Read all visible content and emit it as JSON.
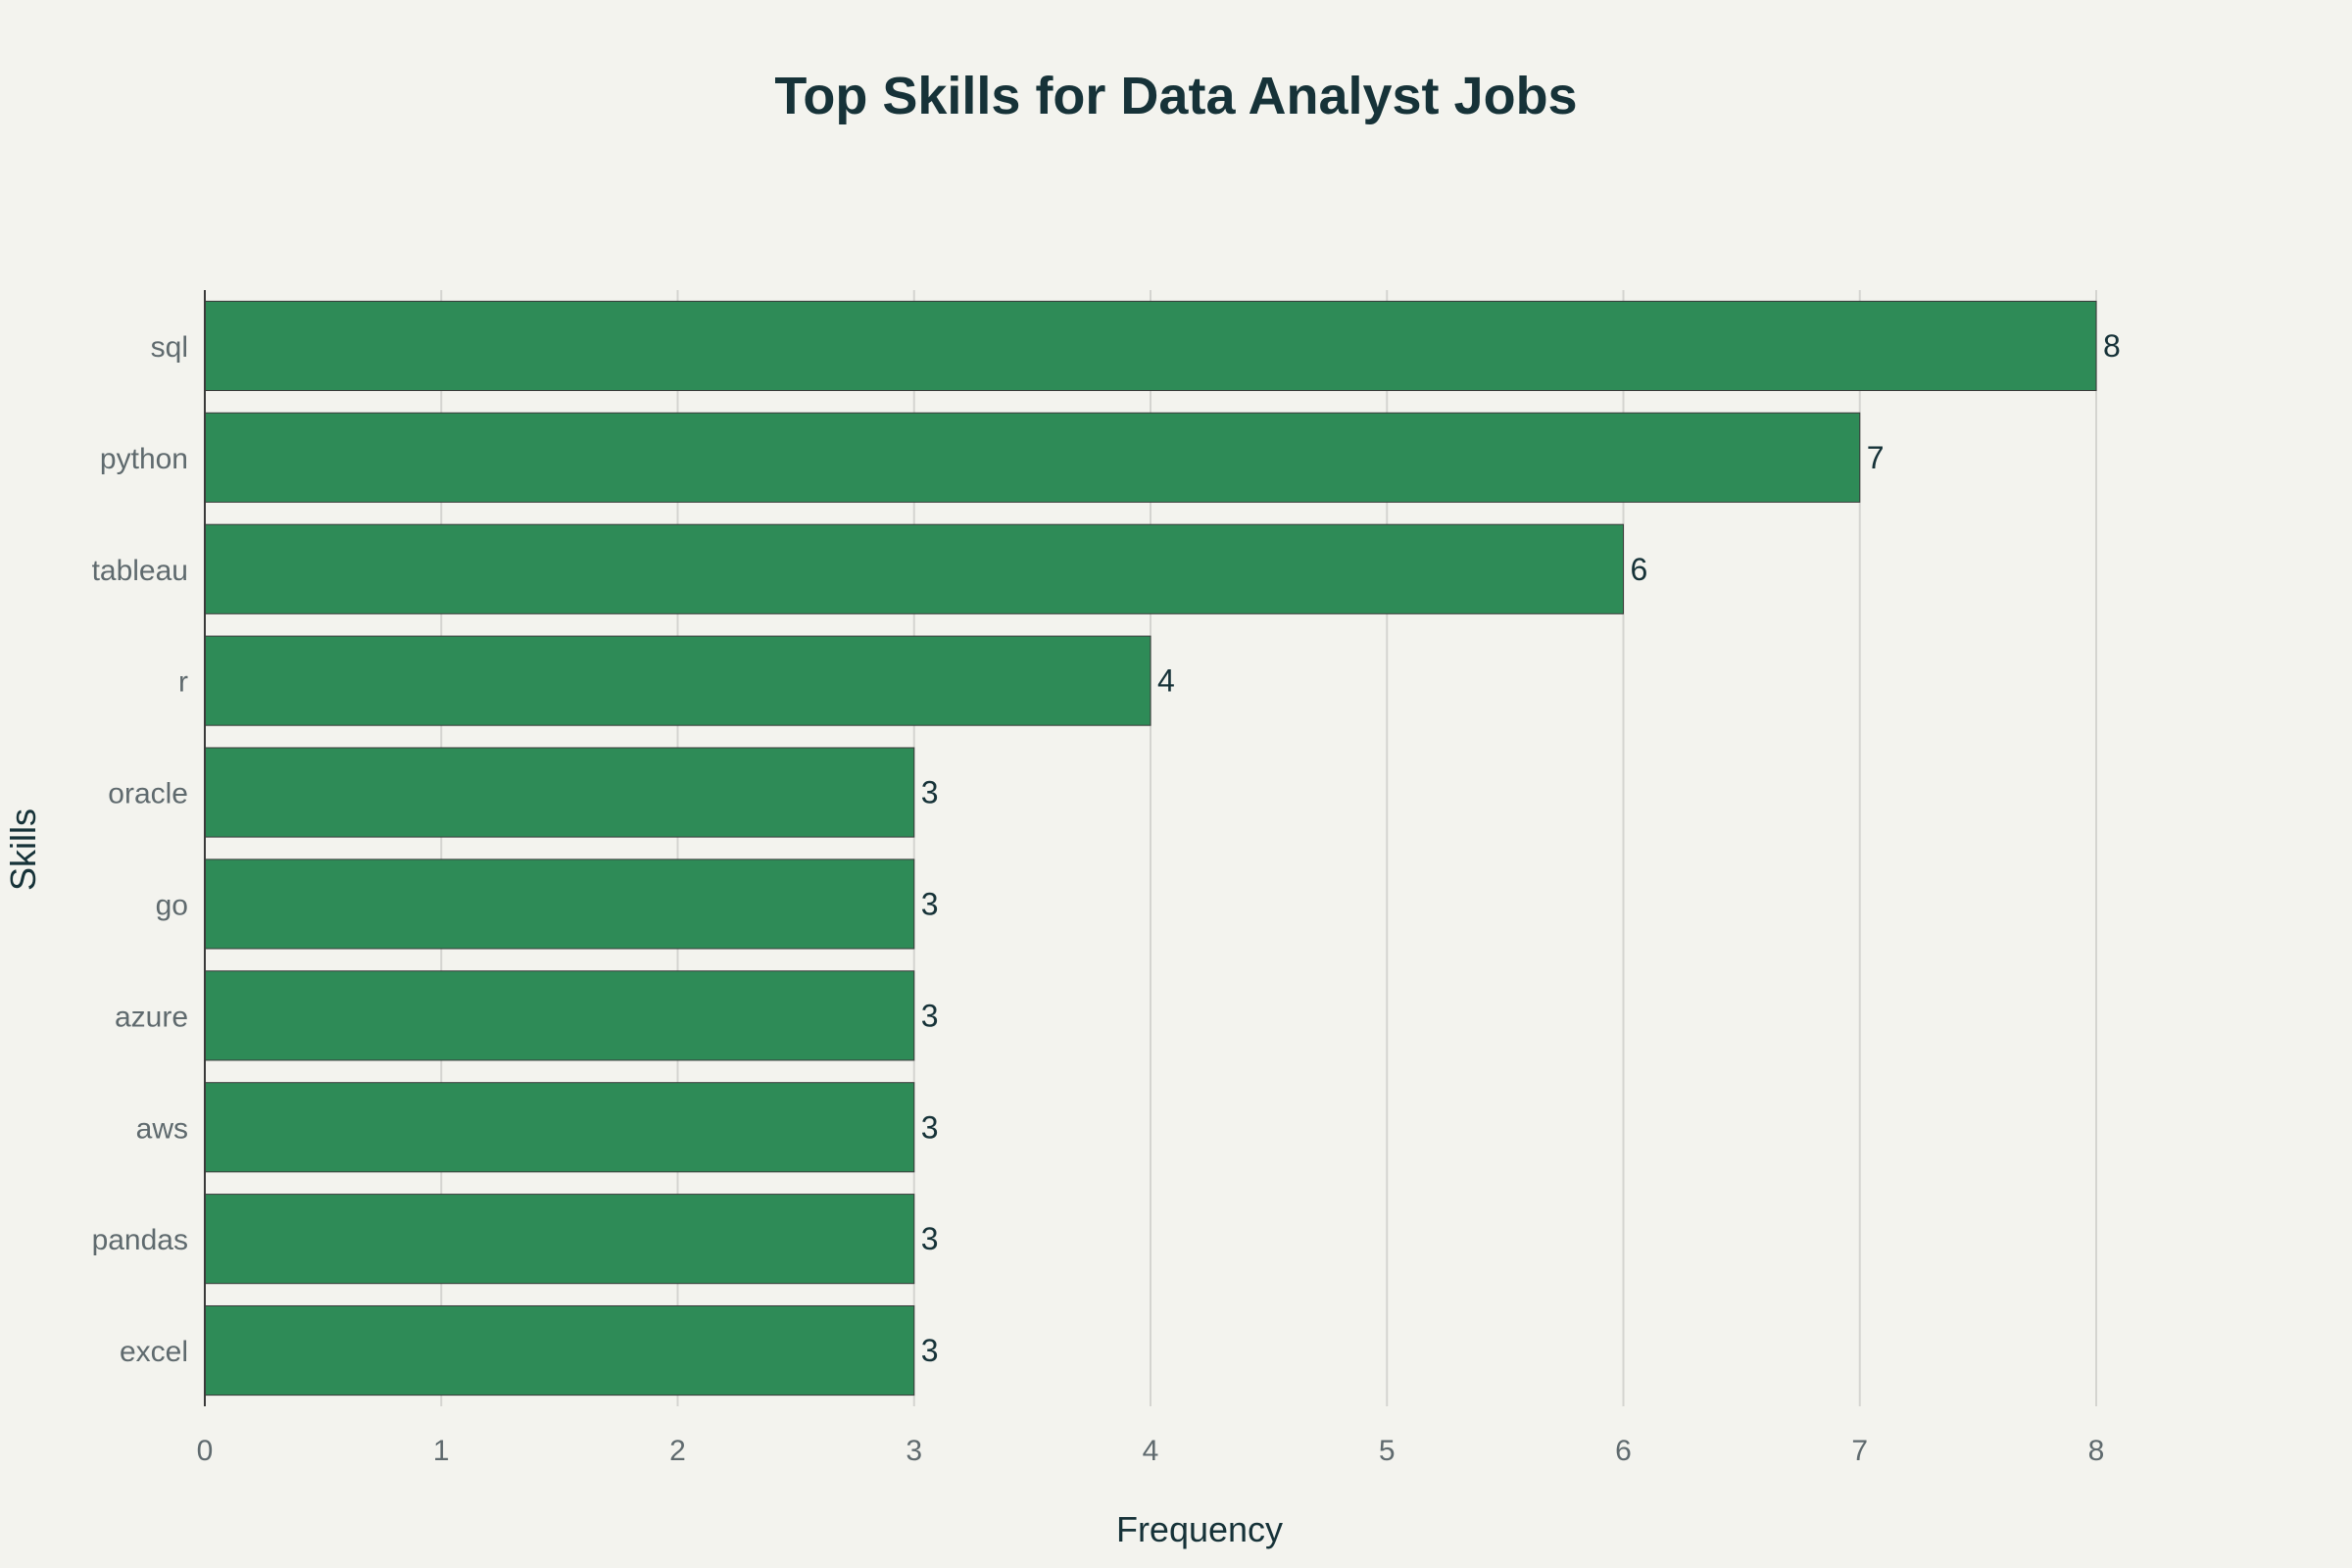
{
  "chart_data": {
    "type": "bar",
    "orientation": "horizontal",
    "title": "Top Skills for Data Analyst Jobs",
    "xlabel": "Frequency",
    "ylabel": "Skills",
    "categories": [
      "sql",
      "python",
      "tableau",
      "r",
      "oracle",
      "go",
      "azure",
      "aws",
      "pandas",
      "excel"
    ],
    "values": [
      8,
      7,
      6,
      4,
      3,
      3,
      3,
      3,
      3,
      3
    ],
    "xlim": [
      0,
      8
    ],
    "xticks": [
      0,
      1,
      2,
      3,
      4,
      5,
      6,
      7,
      8
    ],
    "grid": "vertical",
    "legend": "none",
    "bar_color": "#2e8b57",
    "background_color": "#f3f3ee"
  }
}
